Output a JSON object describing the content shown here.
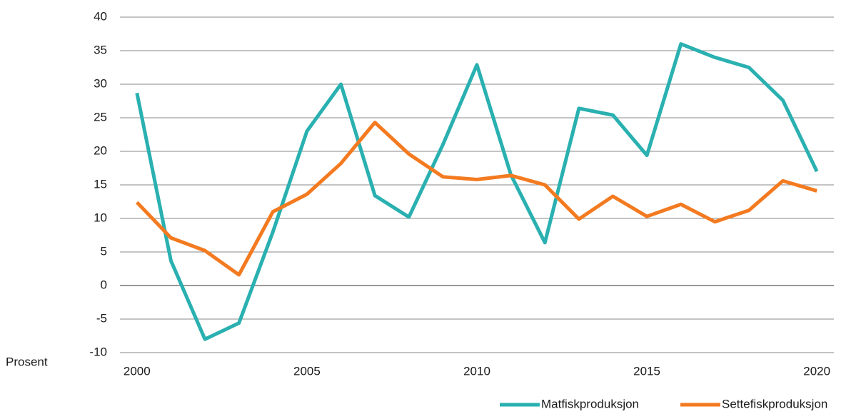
{
  "chart_data": {
    "type": "line",
    "y_label": "Prosent",
    "x": [
      2000,
      2001,
      2002,
      2003,
      2004,
      2005,
      2006,
      2007,
      2008,
      2009,
      2010,
      2011,
      2012,
      2013,
      2014,
      2015,
      2016,
      2017,
      2018,
      2019,
      2020
    ],
    "xlim": [
      1999.5,
      2020.5
    ],
    "xticks": [
      2000,
      2005,
      2010,
      2015,
      2020
    ],
    "ylim": [
      -10,
      40
    ],
    "yticks": [
      -10,
      -5,
      0,
      5,
      10,
      15,
      20,
      25,
      30,
      35,
      40
    ],
    "grid": true,
    "legend": "bottom-right",
    "series": [
      {
        "name": "Matfiskproduksjon",
        "color": "#2ab0b0",
        "values": [
          28.7,
          3.7,
          -8.0,
          -5.6,
          8.0,
          23.0,
          30.0,
          13.4,
          10.2,
          21.0,
          32.9,
          16.5,
          6.4,
          26.4,
          25.4,
          19.4,
          36.0,
          34.0,
          32.5,
          27.6,
          17.0
        ]
      },
      {
        "name": "Settefiskproduksjon",
        "color": "#f47a20",
        "values": [
          12.4,
          7.1,
          5.2,
          1.6,
          11.0,
          13.6,
          18.2,
          24.3,
          19.6,
          16.2,
          15.8,
          16.4,
          15.0,
          9.9,
          13.3,
          10.3,
          12.1,
          9.5,
          11.2,
          15.6,
          14.1
        ]
      }
    ]
  }
}
